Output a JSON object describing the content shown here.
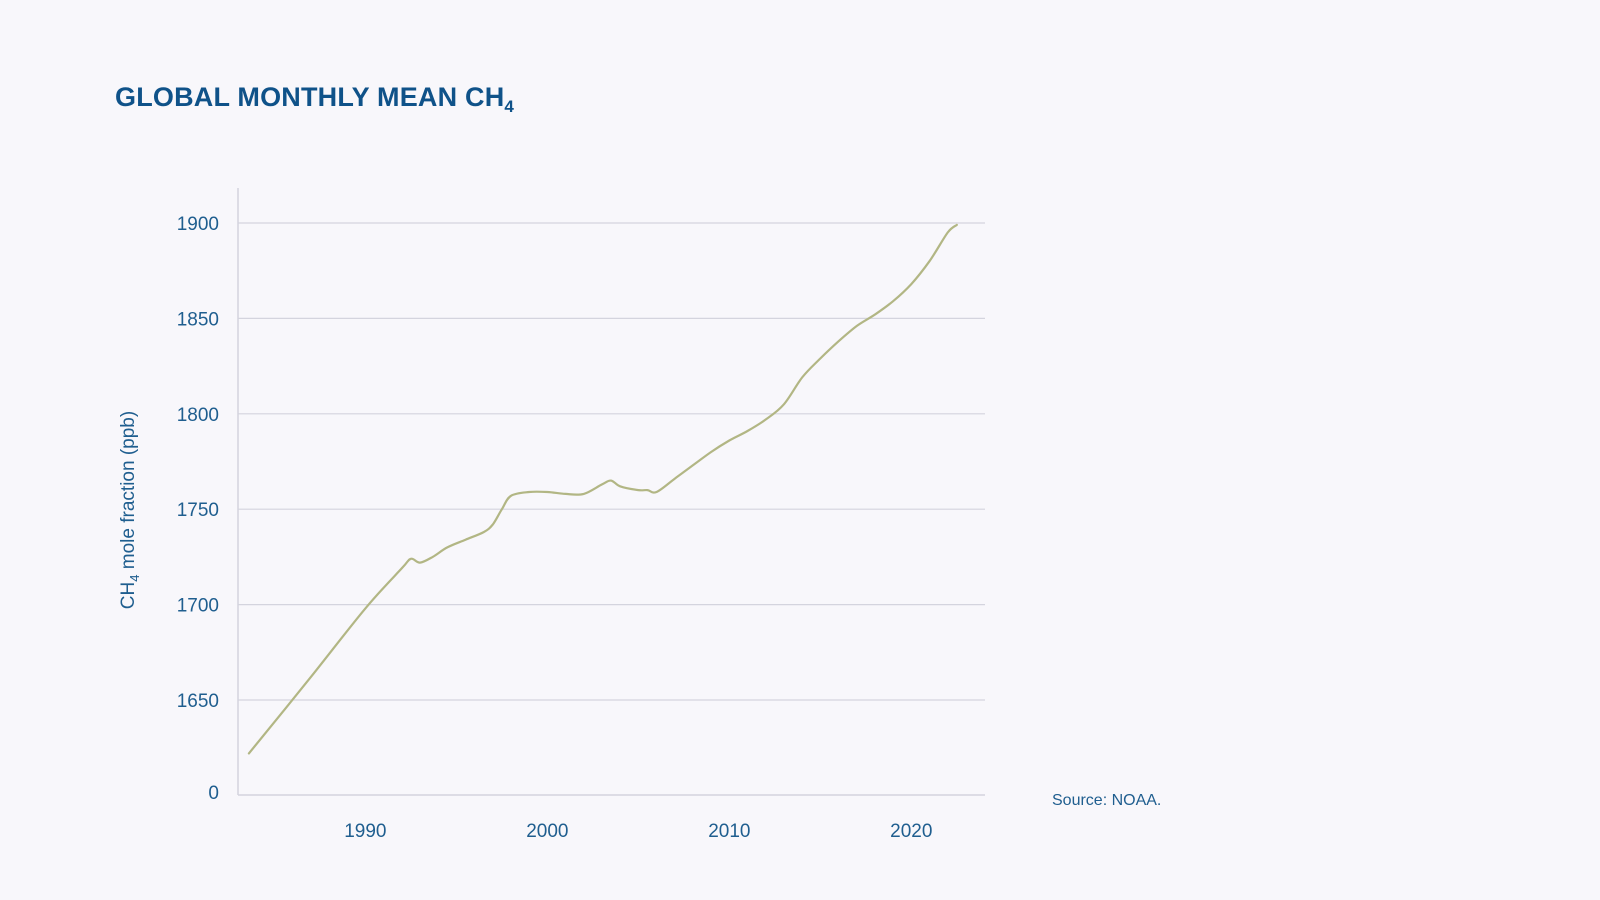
{
  "title": {
    "main": "GLOBAL MONTHLY MEAN CH",
    "subscript": "4"
  },
  "source": "Source: NOAA.",
  "colors": {
    "title": "#0f5289",
    "text": "#1f5e8f",
    "grid": "#d4d4de",
    "line": "#b2b684",
    "background": "#f8f7fb"
  },
  "chart_data": {
    "type": "line",
    "title": "GLOBAL MONTHLY MEAN CH4",
    "ylabel": {
      "before": "CH",
      "sub": "4",
      "after": " mole fraction (ppb)"
    },
    "xlabel": "",
    "grid": true,
    "y_axis_break": true,
    "y_ticks": [
      "0",
      "1650",
      "1700",
      "1750",
      "1800",
      "1850",
      "1900"
    ],
    "x_ticks": [
      "1990",
      "2000",
      "2010",
      "2020"
    ],
    "xlim": [
      1983,
      2023
    ],
    "ylim": [
      1625,
      1910
    ],
    "series": [
      {
        "x": [
          1983.6,
          1987,
          1990,
          1992,
          1992.5,
          1993,
          1993.7,
          1994.5,
          1995.5,
          1996.5,
          1997,
          1997.5,
          1998,
          1999,
          2000,
          2001,
          2002,
          2003,
          2003.5,
          2004,
          2005,
          2005.5,
          2006,
          2007,
          2008,
          2009,
          2010,
          2011,
          2012,
          2013,
          2014,
          2015,
          2016,
          2017,
          2018,
          2019,
          2020,
          2021,
          2022,
          2022.5
        ],
        "y": [
          1622,
          1662,
          1698,
          1719,
          1724,
          1722,
          1725,
          1730,
          1734,
          1738,
          1742,
          1750,
          1757,
          1759,
          1759,
          1758,
          1758,
          1763,
          1765,
          1762,
          1760,
          1760,
          1759,
          1766,
          1773,
          1780,
          1786,
          1791,
          1797,
          1805,
          1819,
          1829,
          1838,
          1846,
          1852,
          1859,
          1868,
          1880,
          1895,
          1899
        ]
      }
    ]
  }
}
